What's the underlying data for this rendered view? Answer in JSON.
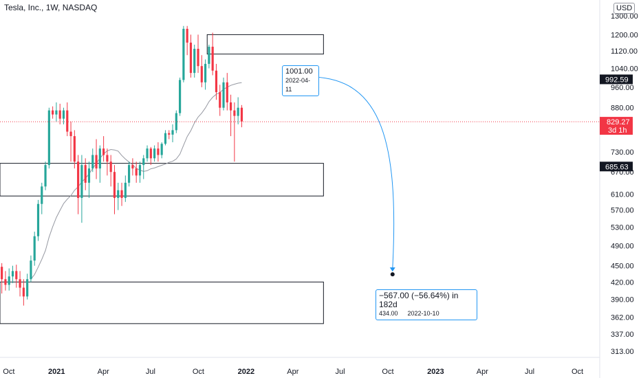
{
  "header": {
    "title": "Tesla, Inc., 1W, NASDAQ",
    "currency": "USD"
  },
  "chart_data": {
    "type": "candlestick",
    "symbol": "Tesla, Inc.",
    "interval": "1W",
    "exchange": "NASDAQ",
    "y_scale": "log",
    "ylim": [
      305,
      1390
    ],
    "yticks": [
      1300,
      1200,
      1120,
      1040,
      960,
      880,
      730,
      670,
      610,
      570,
      530,
      490,
      450,
      420,
      390,
      362,
      337,
      313
    ],
    "xticks": [
      {
        "date": "2020-10-01",
        "label": "Oct",
        "bold": false
      },
      {
        "date": "2021-01-01",
        "label": "2021",
        "bold": true
      },
      {
        "date": "2021-04-01",
        "label": "Apr",
        "bold": false
      },
      {
        "date": "2021-07-01",
        "label": "Jul",
        "bold": false
      },
      {
        "date": "2021-10-01",
        "label": "Oct",
        "bold": false
      },
      {
        "date": "2022-01-01",
        "label": "2022",
        "bold": true
      },
      {
        "date": "2022-04-01",
        "label": "Apr",
        "bold": false
      },
      {
        "date": "2022-07-01",
        "label": "Jul",
        "bold": false
      },
      {
        "date": "2022-10-01",
        "label": "Oct",
        "bold": false
      },
      {
        "date": "2023-01-01",
        "label": "2023",
        "bold": true
      },
      {
        "date": "2023-04-01",
        "label": "Apr",
        "bold": false
      },
      {
        "date": "2023-07-01",
        "label": "Jul",
        "bold": false
      },
      {
        "date": "2023-10-01",
        "label": "Oct",
        "bold": false
      }
    ],
    "xlim": [
      "2020-09-14",
      "2023-11-13"
    ],
    "first_week": "2020-09-14",
    "candles": [
      [
        448,
        455,
        400,
        425
      ],
      [
        425,
        440,
        405,
        415
      ],
      [
        415,
        445,
        405,
        430
      ],
      [
        430,
        450,
        418,
        440
      ],
      [
        440,
        452,
        410,
        425
      ],
      [
        425,
        440,
        395,
        410
      ],
      [
        410,
        425,
        380,
        395
      ],
      [
        395,
        435,
        390,
        425
      ],
      [
        425,
        470,
        420,
        460
      ],
      [
        460,
        520,
        450,
        510
      ],
      [
        510,
        595,
        500,
        585
      ],
      [
        585,
        640,
        560,
        630
      ],
      [
        630,
        700,
        620,
        690
      ],
      [
        690,
        880,
        680,
        870
      ],
      [
        870,
        885,
        840,
        855
      ],
      [
        855,
        900,
        830,
        870
      ],
      [
        870,
        895,
        820,
        840
      ],
      [
        840,
        880,
        820,
        870
      ],
      [
        870,
        900,
        780,
        795
      ],
      [
        795,
        830,
        700,
        780
      ],
      [
        780,
        800,
        680,
        700
      ],
      [
        700,
        720,
        560,
        600
      ],
      [
        600,
        720,
        540,
        690
      ],
      [
        690,
        710,
        620,
        640
      ],
      [
        640,
        700,
        600,
        680
      ],
      [
        680,
        740,
        670,
        720
      ],
      [
        720,
        770,
        650,
        680
      ],
      [
        680,
        750,
        640,
        740
      ],
      [
        740,
        780,
        700,
        720
      ],
      [
        720,
        740,
        660,
        700
      ],
      [
        700,
        720,
        630,
        670
      ],
      [
        670,
        690,
        560,
        600
      ],
      [
        600,
        640,
        570,
        620
      ],
      [
        620,
        640,
        580,
        600
      ],
      [
        600,
        660,
        590,
        640
      ],
      [
        640,
        700,
        630,
        690
      ],
      [
        690,
        710,
        660,
        680
      ],
      [
        680,
        700,
        640,
        660
      ],
      [
        660,
        700,
        640,
        690
      ],
      [
        690,
        720,
        650,
        710
      ],
      [
        710,
        750,
        700,
        740
      ],
      [
        740,
        745,
        690,
        710
      ],
      [
        710,
        750,
        700,
        740
      ],
      [
        740,
        760,
        700,
        720
      ],
      [
        720,
        760,
        710,
        755
      ],
      [
        755,
        800,
        750,
        790
      ],
      [
        790,
        800,
        770,
        785
      ],
      [
        785,
        820,
        760,
        800
      ],
      [
        800,
        870,
        790,
        860
      ],
      [
        860,
        1000,
        850,
        990
      ],
      [
        990,
        1245,
        980,
        1230
      ],
      [
        1230,
        1245,
        1100,
        1160
      ],
      [
        1160,
        1200,
        1000,
        1020
      ],
      [
        1020,
        1150,
        1000,
        1130
      ],
      [
        1130,
        1200,
        1020,
        1050
      ],
      [
        1050,
        1100,
        960,
        980
      ],
      [
        980,
        1080,
        950,
        1060
      ],
      [
        1060,
        1150,
        1040,
        1140
      ],
      [
        1140,
        1210,
        1010,
        1030
      ],
      [
        1030,
        1060,
        910,
        940
      ],
      [
        940,
        970,
        850,
        880
      ],
      [
        880,
        1000,
        870,
        980
      ],
      [
        980,
        1020,
        870,
        900
      ],
      [
        900,
        930,
        780,
        870
      ],
      [
        870,
        900,
        700,
        850
      ],
      [
        850,
        920,
        820,
        880
      ],
      [
        880,
        890,
        810,
        830
      ]
    ],
    "moving_average": {
      "from_week": 0,
      "values": [
        null,
        null,
        null,
        null,
        null,
        null,
        null,
        null,
        null,
        null,
        null,
        null,
        null,
        null,
        null,
        null,
        null,
        null,
        null,
        null,
        null,
        null,
        null,
        null,
        null,
        null,
        null,
        null,
        null,
        null,
        null,
        null,
        null,
        null,
        null,
        null,
        null,
        null,
        null,
        null,
        null,
        null,
        null,
        null,
        null,
        null,
        null,
        null,
        null,
        null,
        null,
        null,
        null,
        null,
        null,
        null,
        null,
        null,
        null,
        null,
        null,
        null,
        null,
        null,
        null,
        null,
        null
      ]
    },
    "zones": [
      {
        "from": "2021-10-18",
        "to": "2022-05-30",
        "low": 1105,
        "high": 1200
      },
      {
        "from": "2020-09-14",
        "to": "2022-05-30",
        "low": 605,
        "high": 695
      },
      {
        "from": "2020-09-14",
        "to": "2022-05-30",
        "low": 352,
        "high": 420
      }
    ],
    "projection": {
      "from_price": 1001.0,
      "from_date": "2022-04-11",
      "to_price": 434.0,
      "to_date": "2022-10-10",
      "change": "−567.00 (−56.64%) in 182d",
      "start_label_price": "1001.00",
      "start_label_date": "2022-04-11",
      "end_label_price": "434.00",
      "end_label_date": "2022-10-10"
    },
    "current_price": {
      "value": 829.27,
      "label": "829.27",
      "countdown": "3d 1h",
      "color": "#f23645"
    },
    "price_badges": [
      {
        "value": 992.59,
        "label": "992.59",
        "color": "#131722"
      },
      {
        "value": 685.63,
        "label": "685.63",
        "color": "#131722"
      }
    ],
    "colors": {
      "up": "#26a69a",
      "down": "#f23645",
      "ma": "#9598a1",
      "projection": "#2196f3",
      "zone": "#131722"
    }
  }
}
